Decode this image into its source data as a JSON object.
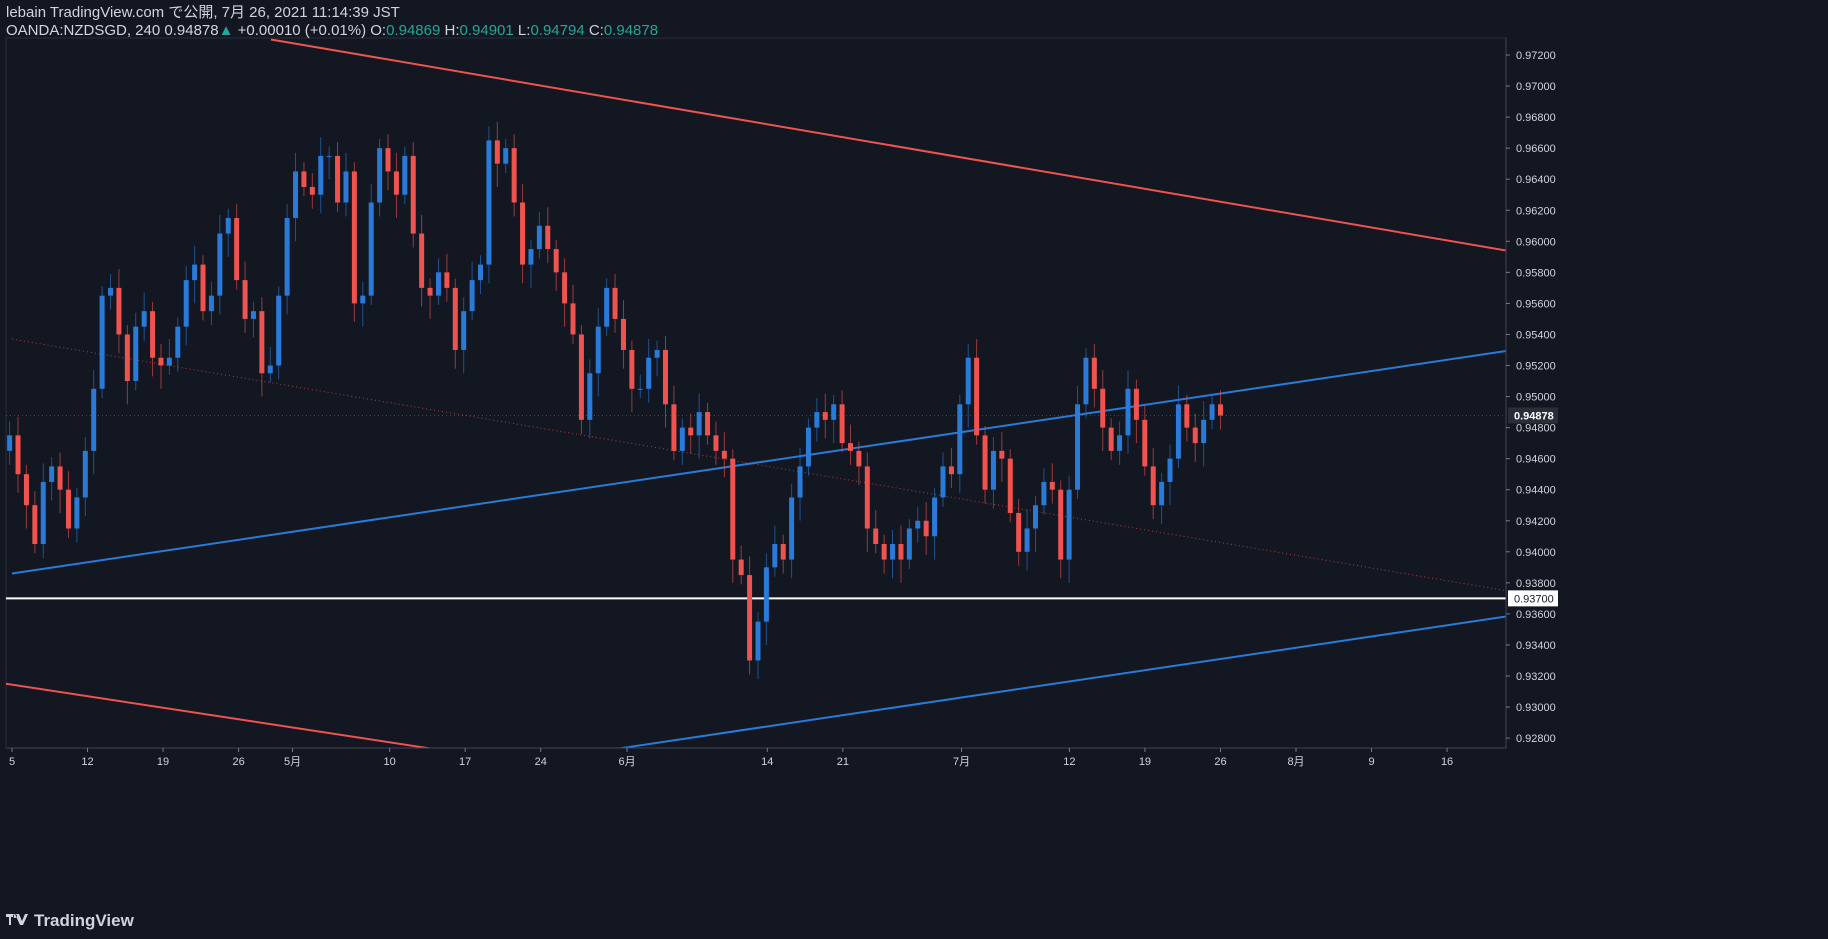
{
  "header": {
    "publish_line": "lebain TradingView.com で公開, 7月 26, 2021 11:14:39 JST",
    "symbol": "OANDA:NZDSGD, 240",
    "last": "0.94878",
    "change": "+0.00010 (+0.01%)",
    "o_label": "O:",
    "o": "0.94869",
    "h_label": "H:",
    "h": "0.94901",
    "l_label": "L:",
    "l": "0.94794",
    "c_label": "C:",
    "c": "0.94878"
  },
  "footer": {
    "brand": "TradingView"
  },
  "colors": {
    "bg": "#131722",
    "up": "#2a7ad8",
    "down": "#ef5350",
    "grid": "#2a2e39",
    "text": "#d1d4dc",
    "blue_line": "#2a7ad8",
    "red_line": "#ef5350"
  },
  "chart_data": {
    "type": "line",
    "series_kind": "candlestick",
    "ylim": [
      0.927,
      0.973
    ],
    "y_ticks": [
      "0.97200",
      "0.97000",
      "0.96800",
      "0.96600",
      "0.96400",
      "0.96200",
      "0.96000",
      "0.95800",
      "0.95600",
      "0.95400",
      "0.95200",
      "0.95000",
      "0.94800",
      "0.94600",
      "0.94400",
      "0.94200",
      "0.94000",
      "0.93800",
      "0.93600",
      "0.93400",
      "0.93200",
      "0.93000",
      "0.92800"
    ],
    "x_labels": [
      "5",
      "12",
      "19",
      "26",
      "5月",
      "10",
      "17",
      "24",
      "6月",
      "14",
      "21",
      "7月",
      "12",
      "19",
      "26",
      "8月",
      "9",
      "16"
    ],
    "x_label_day_index": [
      0,
      7,
      14,
      21,
      26,
      35,
      42,
      49,
      57,
      70,
      77,
      88,
      98,
      105,
      112,
      119,
      126,
      133
    ],
    "price_label": "0.94878",
    "horizontal_level": {
      "value": 0.937,
      "label": "0.93700"
    },
    "closes": [
      0.9465,
      0.9475,
      0.945,
      0.943,
      0.9405,
      0.9445,
      0.9455,
      0.944,
      0.9415,
      0.9435,
      0.9465,
      0.9505,
      0.9565,
      0.957,
      0.954,
      0.951,
      0.9545,
      0.9555,
      0.9525,
      0.952,
      0.9525,
      0.9545,
      0.9575,
      0.9585,
      0.9555,
      0.9565,
      0.9605,
      0.9615,
      0.9575,
      0.955,
      0.9555,
      0.9515,
      0.952,
      0.9565,
      0.9615,
      0.9645,
      0.9635,
      0.963,
      0.9655,
      0.9655,
      0.9625,
      0.9645,
      0.956,
      0.9565,
      0.9625,
      0.966,
      0.9645,
      0.963,
      0.9655,
      0.9605,
      0.957,
      0.9565,
      0.958,
      0.957,
      0.953,
      0.9555,
      0.9575,
      0.9585,
      0.9665,
      0.965,
      0.966,
      0.9625,
      0.9585,
      0.9595,
      0.961,
      0.9595,
      0.958,
      0.956,
      0.954,
      0.9485,
      0.9515,
      0.9545,
      0.957,
      0.955,
      0.953,
      0.9505,
      0.9505,
      0.9525,
      0.953,
      0.9495,
      0.9465,
      0.948,
      0.9475,
      0.949,
      0.9475,
      0.9465,
      0.946,
      0.9395,
      0.9385,
      0.933,
      0.9355,
      0.939,
      0.9405,
      0.9395,
      0.9435,
      0.9455,
      0.948,
      0.949,
      0.9485,
      0.9495,
      0.947,
      0.9465,
      0.9455,
      0.9415,
      0.9405,
      0.9395,
      0.9405,
      0.9395,
      0.9415,
      0.942,
      0.941,
      0.9435,
      0.9455,
      0.945,
      0.9495,
      0.9525,
      0.9475,
      0.944,
      0.9465,
      0.946,
      0.9425,
      0.94,
      0.9415,
      0.943,
      0.9445,
      0.944,
      0.9395,
      0.944,
      0.9495,
      0.9525,
      0.9505,
      0.948,
      0.9465,
      0.9475,
      0.9505,
      0.9485,
      0.9455,
      0.943,
      0.9445,
      0.946,
      0.9495,
      0.948,
      0.947,
      0.9485,
      0.9495,
      0.94878
    ],
    "trend_lines": [
      {
        "name": "",
        "color": "#ef5350",
        "p1": {
          "day": 24,
          "price": 0.973
        },
        "p2": {
          "day": 200,
          "price": 0.9521
        }
      },
      {
        "name": "",
        "color": "#ef5350",
        "p1": {
          "day": -10,
          "price": 0.9325
        },
        "p2": {
          "day": 40,
          "price": 0.9272
        }
      },
      {
        "name": "",
        "color": "#2a7ad8",
        "p1": {
          "day": 0,
          "price": 0.9386
        },
        "p2": {
          "day": 200,
          "price": 0.9593
        }
      },
      {
        "name": "",
        "color": "#2a7ad8",
        "p1": {
          "day": 55,
          "price": 0.9272
        },
        "p2": {
          "day": 200,
          "price": 0.9422
        }
      },
      {
        "name": "",
        "color": "#ef5350",
        "dotted": true,
        "p1": {
          "day": 0,
          "price": 0.9537
        },
        "p2": {
          "day": 200,
          "price": 0.9303
        }
      }
    ]
  }
}
